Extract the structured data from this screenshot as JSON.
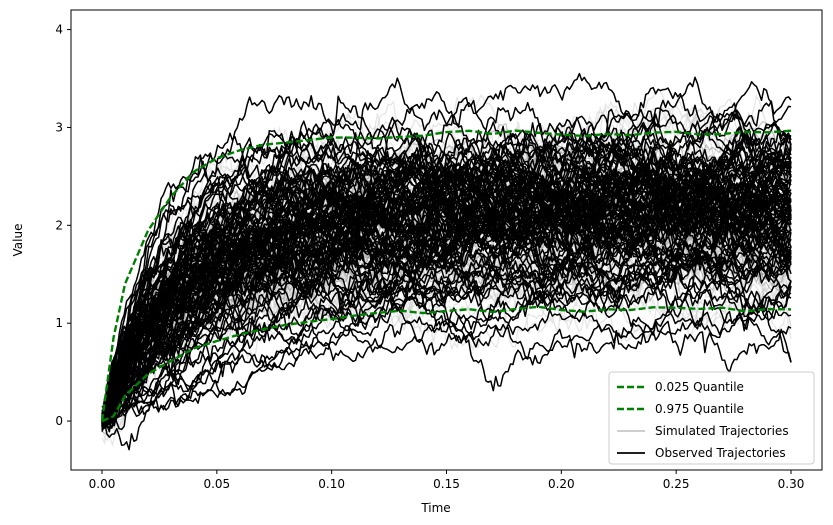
{
  "chart_data": {
    "type": "line",
    "title": "",
    "xlabel": "Time",
    "ylabel": "Value",
    "xlim": [
      -0.0135,
      0.3135
    ],
    "ylim": [
      -0.5,
      4.2
    ],
    "xticks": [
      0.0,
      0.05,
      0.1,
      0.15,
      0.2,
      0.25,
      0.3
    ],
    "xtick_labels": [
      "0.00",
      "0.05",
      "0.10",
      "0.15",
      "0.20",
      "0.25",
      "0.30"
    ],
    "yticks": [
      0,
      1,
      2,
      3,
      4
    ],
    "ytick_labels": [
      "0",
      "1",
      "2",
      "3",
      "4"
    ],
    "grid": false,
    "legend_position": "bottom-right",
    "colors": {
      "quantile": "#008000",
      "simulated": "#c8c8c8",
      "observed": "#000000"
    },
    "legend": [
      {
        "label": "0.025 Quantile",
        "style": "dashed",
        "color": "#008000"
      },
      {
        "label": "0.975 Quantile",
        "style": "dashed",
        "color": "#008000"
      },
      {
        "label": "Simulated Trajectories",
        "style": "solid",
        "color": "#c8c8c8"
      },
      {
        "label": "Observed Trajectories",
        "style": "solid",
        "color": "#000000"
      }
    ],
    "series": [
      {
        "name": "0.025 Quantile",
        "x": [
          0.0,
          0.005,
          0.01,
          0.02,
          0.03,
          0.04,
          0.05,
          0.06,
          0.07,
          0.08,
          0.09,
          0.1,
          0.11,
          0.12,
          0.13,
          0.14,
          0.15,
          0.16,
          0.17,
          0.18,
          0.19,
          0.2,
          0.21,
          0.22,
          0.23,
          0.24,
          0.25,
          0.26,
          0.27,
          0.28,
          0.29,
          0.3
        ],
        "values": [
          0.0,
          0.05,
          0.25,
          0.48,
          0.62,
          0.75,
          0.82,
          0.88,
          0.93,
          0.98,
          1.02,
          1.05,
          1.08,
          1.1,
          1.12,
          1.1,
          1.13,
          1.15,
          1.12,
          1.14,
          1.16,
          1.13,
          1.12,
          1.15,
          1.14,
          1.16,
          1.15,
          1.14,
          1.16,
          1.13,
          1.15,
          1.14
        ]
      },
      {
        "name": "0.975 Quantile",
        "x": [
          0.0,
          0.005,
          0.01,
          0.02,
          0.03,
          0.04,
          0.05,
          0.06,
          0.07,
          0.08,
          0.09,
          0.1,
          0.11,
          0.12,
          0.13,
          0.14,
          0.15,
          0.16,
          0.17,
          0.18,
          0.19,
          0.2,
          0.21,
          0.22,
          0.23,
          0.24,
          0.25,
          0.26,
          0.27,
          0.28,
          0.29,
          0.3
        ],
        "values": [
          0.0,
          0.85,
          1.4,
          1.95,
          2.3,
          2.55,
          2.68,
          2.76,
          2.82,
          2.85,
          2.88,
          2.9,
          2.89,
          2.88,
          2.9,
          2.92,
          2.96,
          2.97,
          2.93,
          2.96,
          2.94,
          2.93,
          2.92,
          2.94,
          2.92,
          2.94,
          2.95,
          2.93,
          2.94,
          2.96,
          2.95,
          2.96
        ]
      }
    ]
  }
}
